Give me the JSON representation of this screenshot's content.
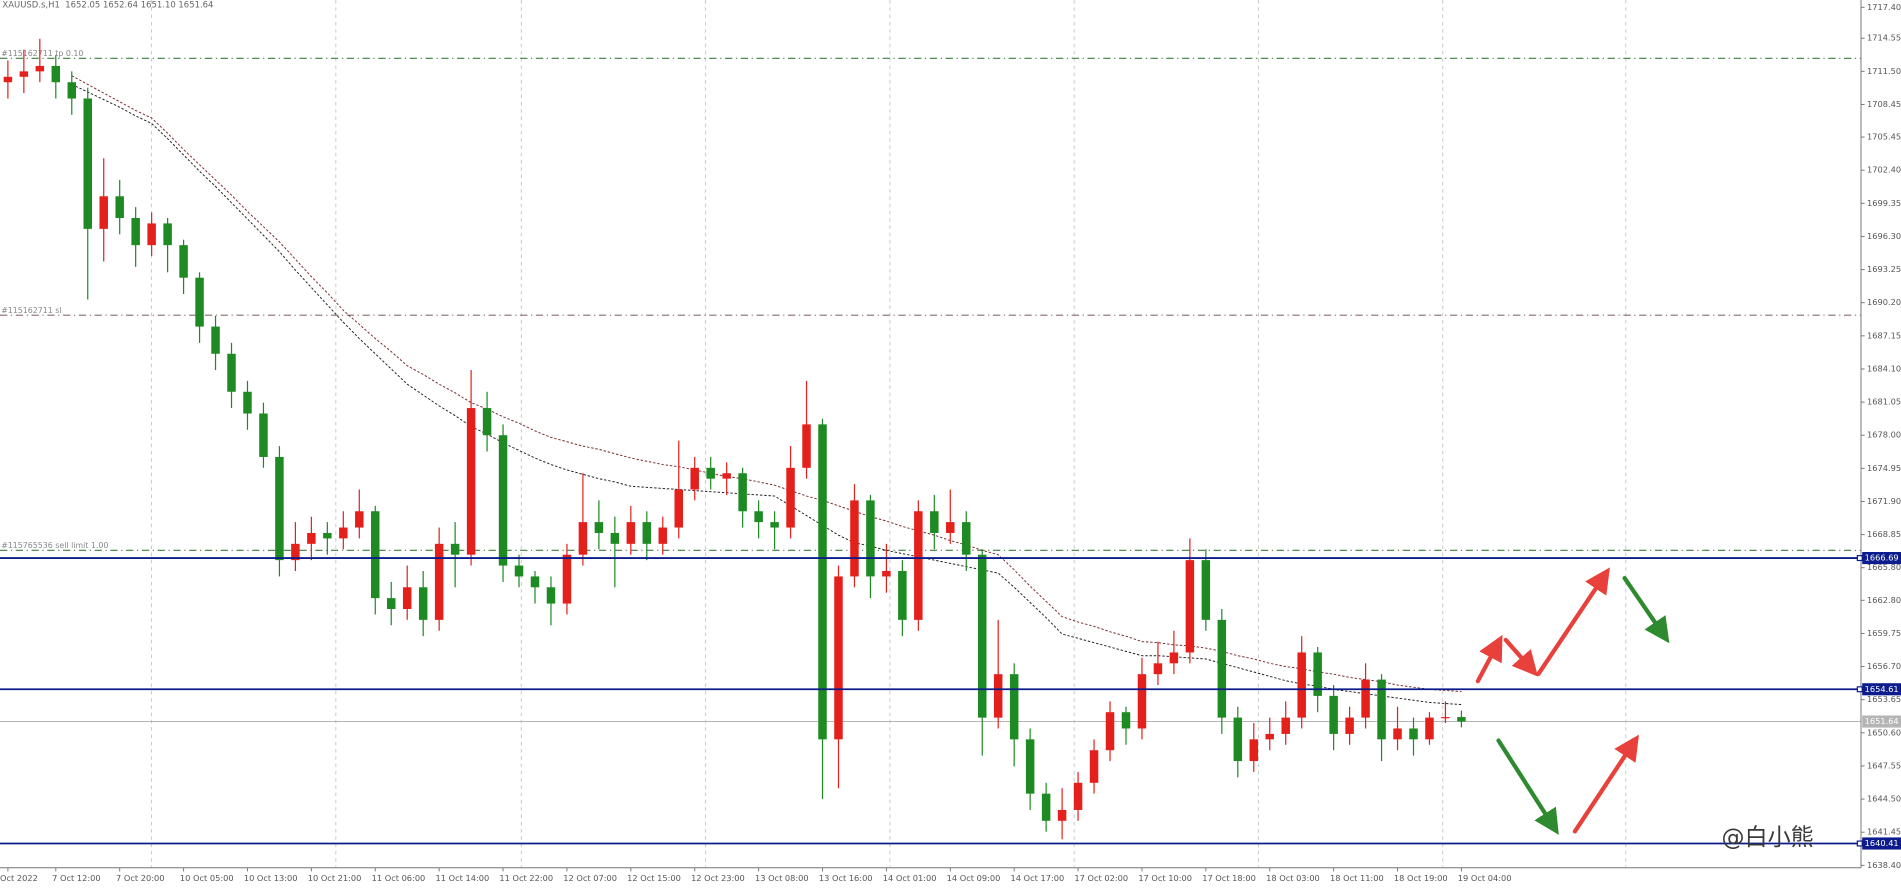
{
  "chart_data": {
    "type": "candlestick",
    "title": "XAUUSD.s,H1  1652.05 1652.64 1651.10 1651.64",
    "watermark": "@白小熊",
    "up_color": "#e3201b",
    "down_color": "#1e8a23",
    "ylim": [
      1638.4,
      1717.4
    ],
    "yticks": [
      {
        "value": 1717.4,
        "label": "1717.40"
      },
      1714.55,
      {
        "value": 1711.5,
        "label": "1711.50"
      },
      1708.45,
      1705.45,
      {
        "value": 1702.4,
        "label": "1702.40"
      },
      1699.35,
      {
        "value": 1696.3,
        "label": "1696.30"
      },
      1693.25,
      {
        "value": 1690.2,
        "label": "1690.20"
      },
      1687.15,
      {
        "value": 1684.1,
        "label": "1684.10"
      },
      1681.05,
      {
        "value": 1678.0,
        "label": "1678.00"
      },
      1674.95,
      {
        "value": 1671.9,
        "label": "1671.90"
      },
      1668.85,
      {
        "value": 1665.8,
        "label": "1665.80"
      },
      {
        "value": 1662.8,
        "label": "1662.80"
      },
      1659.75,
      {
        "value": 1656.7,
        "label": "1656.70"
      },
      1653.65,
      {
        "value": 1650.6,
        "label": "1650.60"
      },
      1647.55,
      {
        "value": 1644.5,
        "label": "1644.50"
      },
      1641.45,
      {
        "value": 1638.4,
        "label": "1638.40"
      }
    ],
    "categories": [
      "Oct 2022",
      null,
      null,
      "7 Oct 12:00",
      null,
      null,
      null,
      "7 Oct 20:00",
      null,
      null,
      null,
      "10 Oct 05:00",
      null,
      null,
      null,
      "10 Oct 13:00",
      null,
      null,
      null,
      "10 Oct 21:00",
      null,
      null,
      null,
      "11 Oct 06:00",
      null,
      null,
      null,
      "11 Oct 14:00",
      null,
      null,
      null,
      "11 Oct 22:00",
      null,
      null,
      null,
      "12 Oct 07:00",
      null,
      null,
      null,
      "12 Oct 15:00",
      null,
      null,
      null,
      "12 Oct 23:00",
      null,
      null,
      null,
      "13 Oct 08:00",
      null,
      null,
      null,
      "13 Oct 16:00",
      null,
      null,
      null,
      "14 Oct 01:00",
      null,
      null,
      null,
      "14 Oct 09:00",
      null,
      null,
      null,
      "14 Oct 17:00",
      null,
      null,
      null,
      "17 Oct 02:00",
      null,
      null,
      null,
      "17 Oct 10:00",
      null,
      null,
      null,
      "17 Oct 18:00",
      null,
      null,
      null,
      "18 Oct 03:00",
      null,
      null,
      null,
      "18 Oct 11:00",
      null,
      null,
      null,
      "18 Oct 19:00",
      null,
      null,
      null,
      "19 Oct 04:00"
    ],
    "open": [
      1710.5,
      1711.0,
      1711.5,
      1712.0,
      1710.5,
      1709.0,
      1697.0,
      1700.0,
      1698.0,
      1695.5,
      1697.5,
      1695.5,
      1692.5,
      1688.0,
      1685.5,
      1682.0,
      1680.0,
      1676.0,
      1666.5,
      1668.0,
      1669.0,
      1668.5,
      1669.5,
      1671.0,
      1663.0,
      1662.0,
      1664.0,
      1661.0,
      1668.0,
      1667.0,
      1680.5,
      1678.0,
      1666.0,
      1665.0,
      1664.0,
      1662.5,
      1667.0,
      1670.0,
      1669.0,
      1668.0,
      1670.0,
      1668.0,
      1669.5,
      1673.0,
      1675.0,
      1674.0,
      1674.5,
      1671.0,
      1670.0,
      1669.5,
      1675.0,
      1679.0,
      1650.0,
      1665.0,
      1672.0,
      1665.0,
      1665.5,
      1661.0,
      1671.0,
      1669.0,
      1670.0,
      1667.0,
      1652.0,
      1656.0,
      1650.0,
      1645.0,
      1642.5,
      1643.5,
      1646.0,
      1649.0,
      1652.5,
      1651.0,
      1656.0,
      1657.0,
      1658.0,
      1666.5,
      1661.0,
      1652.0,
      1648.0,
      1650.0,
      1650.5,
      1652.0,
      1658.0,
      1654.0,
      1650.5,
      1652.0,
      1655.5,
      1650.0,
      1651.0,
      1650.0,
      1652.0,
      1652.05
    ],
    "high": [
      1712.5,
      1713.5,
      1714.5,
      1713.0,
      1711.5,
      1710.0,
      1703.5,
      1701.5,
      1699.0,
      1698.5,
      1698.0,
      1696.0,
      1693.0,
      1689.0,
      1686.5,
      1683.0,
      1681.0,
      1677.0,
      1670.0,
      1670.5,
      1670.0,
      1671.0,
      1673.0,
      1671.5,
      1664.5,
      1666.0,
      1665.5,
      1669.5,
      1670.0,
      1684.0,
      1682.0,
      1679.0,
      1667.0,
      1665.5,
      1665.0,
      1668.0,
      1674.5,
      1672.0,
      1670.5,
      1671.5,
      1671.0,
      1670.5,
      1677.5,
      1676.0,
      1676.0,
      1675.5,
      1675.0,
      1672.0,
      1671.0,
      1677.0,
      1683.0,
      1679.5,
      1666.0,
      1673.5,
      1672.5,
      1668.0,
      1666.5,
      1672.0,
      1672.5,
      1673.0,
      1671.0,
      1667.5,
      1661.0,
      1657.0,
      1651.0,
      1646.0,
      1645.5,
      1647.0,
      1650.0,
      1653.5,
      1653.0,
      1657.5,
      1659.0,
      1660.0,
      1668.5,
      1667.5,
      1662.0,
      1653.0,
      1651.5,
      1652.0,
      1653.5,
      1659.5,
      1658.5,
      1655.0,
      1653.0,
      1657.0,
      1656.0,
      1653.0,
      1652.0,
      1652.5,
      1653.5,
      1652.64
    ],
    "low": [
      1709.0,
      1709.5,
      1710.5,
      1709.0,
      1707.5,
      1690.5,
      1694.0,
      1696.5,
      1693.5,
      1694.5,
      1693.0,
      1691.0,
      1686.5,
      1684.0,
      1680.5,
      1678.5,
      1675.0,
      1665.0,
      1665.5,
      1666.5,
      1667.0,
      1667.5,
      1668.5,
      1661.5,
      1660.5,
      1661.0,
      1659.5,
      1660.0,
      1664.0,
      1666.0,
      1676.5,
      1664.5,
      1664.0,
      1662.5,
      1660.5,
      1661.5,
      1666.0,
      1667.5,
      1664.0,
      1667.0,
      1666.5,
      1667.0,
      1668.5,
      1672.0,
      1673.0,
      1672.5,
      1669.5,
      1668.5,
      1667.5,
      1668.5,
      1674.0,
      1644.5,
      1645.5,
      1664.0,
      1663.0,
      1663.5,
      1659.5,
      1660.0,
      1667.5,
      1668.0,
      1665.5,
      1648.5,
      1651.0,
      1647.5,
      1643.5,
      1641.5,
      1640.8,
      1642.5,
      1645.0,
      1648.0,
      1649.5,
      1650.0,
      1655.0,
      1656.0,
      1657.0,
      1660.0,
      1650.5,
      1646.5,
      1647.0,
      1649.0,
      1649.5,
      1651.0,
      1652.5,
      1649.0,
      1649.5,
      1651.0,
      1648.0,
      1649.0,
      1648.5,
      1649.5,
      1651.5,
      1651.1
    ],
    "close": [
      1711.0,
      1711.5,
      1712.0,
      1710.5,
      1709.0,
      1697.0,
      1700.0,
      1698.0,
      1695.5,
      1697.5,
      1695.5,
      1692.5,
      1688.0,
      1685.5,
      1682.0,
      1680.0,
      1676.0,
      1666.5,
      1668.0,
      1669.0,
      1668.5,
      1669.5,
      1671.0,
      1663.0,
      1662.0,
      1664.0,
      1661.0,
      1668.0,
      1667.0,
      1680.5,
      1678.0,
      1666.0,
      1665.0,
      1664.0,
      1662.5,
      1667.0,
      1670.0,
      1669.0,
      1668.0,
      1670.0,
      1668.0,
      1669.5,
      1673.0,
      1675.0,
      1674.0,
      1674.5,
      1671.0,
      1670.0,
      1669.5,
      1675.0,
      1679.0,
      1650.0,
      1665.0,
      1672.0,
      1665.0,
      1665.5,
      1661.0,
      1671.0,
      1669.0,
      1670.0,
      1667.0,
      1652.0,
      1656.0,
      1650.0,
      1645.0,
      1642.5,
      1643.5,
      1646.0,
      1649.0,
      1652.5,
      1651.0,
      1656.0,
      1657.0,
      1658.0,
      1666.5,
      1661.0,
      1652.0,
      1648.0,
      1650.0,
      1650.5,
      1652.0,
      1658.0,
      1654.0,
      1650.5,
      1652.0,
      1655.5,
      1650.0,
      1651.0,
      1650.0,
      1652.0,
      1652.05,
      1651.64
    ],
    "overlays": [
      {
        "color": "#7a2a2a",
        "values": [
          null,
          null,
          null,
          null,
          1711.1,
          1710.3,
          1709.5,
          1708.7,
          1707.9,
          1707.2,
          1705.8,
          1704.3,
          1702.9,
          1701.5,
          1700.1,
          1698.6,
          1697.2,
          1695.8,
          1694.2,
          1692.6,
          1691.1,
          1689.5,
          1688.2,
          1686.9,
          1685.7,
          1684.4,
          1683.6,
          1682.7,
          1681.9,
          1681.0,
          1680.4,
          1679.7,
          1679.1,
          1678.4,
          1677.8,
          1677.4,
          1677.0,
          1676.7,
          1676.3,
          1675.9,
          1675.6,
          1675.3,
          1675.1,
          1674.8,
          1674.5,
          1674.2,
          1674.0,
          1673.7,
          1673.4,
          1672.9,
          1672.4,
          1672.0,
          1671.5,
          1671.0,
          1670.5,
          1670.1,
          1669.6,
          1669.2,
          1668.8,
          1668.3,
          1667.9,
          1667.4,
          1667.0,
          1665.6,
          1664.1,
          1662.7,
          1661.3,
          1660.8,
          1660.4,
          1659.9,
          1659.5,
          1659.0,
          1658.9,
          1658.7,
          1658.6,
          1658.4,
          1658.1,
          1657.7,
          1657.4,
          1657.0,
          1656.7,
          1656.5,
          1656.2,
          1656.0,
          1655.7,
          1655.5,
          1655.3,
          1655.0,
          1654.8,
          1654.6,
          1654.5,
          1654.4
        ]
      },
      {
        "color": "#222222",
        "values": [
          null,
          null,
          null,
          null,
          1710.3,
          1709.6,
          1708.9,
          1708.2,
          1707.4,
          1706.7,
          1705.3,
          1703.8,
          1702.3,
          1700.9,
          1699.4,
          1697.9,
          1696.4,
          1694.9,
          1693.2,
          1691.6,
          1690.0,
          1688.4,
          1686.9,
          1685.5,
          1684.1,
          1682.7,
          1681.7,
          1680.7,
          1679.8,
          1678.8,
          1678.1,
          1677.3,
          1676.6,
          1675.9,
          1675.3,
          1674.8,
          1674.4,
          1674.0,
          1673.7,
          1673.3,
          1673.2,
          1673.1,
          1673.0,
          1672.9,
          1672.8,
          1672.7,
          1672.6,
          1672.5,
          1672.4,
          1671.5,
          1670.6,
          1669.7,
          1668.8,
          1668.1,
          1667.8,
          1667.4,
          1667.1,
          1666.8,
          1666.5,
          1666.2,
          1665.9,
          1665.6,
          1665.3,
          1664.0,
          1662.6,
          1661.2,
          1659.7,
          1659.3,
          1658.9,
          1658.5,
          1658.1,
          1657.7,
          1657.7,
          1657.6,
          1657.5,
          1657.4,
          1657.0,
          1656.6,
          1656.2,
          1655.8,
          1655.4,
          1655.1,
          1654.9,
          1654.6,
          1654.4,
          1654.2,
          1654.0,
          1653.8,
          1653.6,
          1653.4,
          1653.3,
          1653.2
        ]
      }
    ],
    "levels": [
      {
        "label": "#115162711 tp 0.10",
        "value": 1712.7,
        "color": "#3f7f3f"
      },
      {
        "label": "#115162711 sl",
        "value": 1689.05,
        "color": "#8a6c6c"
      },
      {
        "label": "#115765536 sell limit 1.00",
        "value": 1667.4,
        "color": "#3f7f3f"
      }
    ],
    "hlines": [
      1666.69,
      1654.61,
      1640.41
    ],
    "hline_color": "#0c1c8c",
    "bid": 1651.64
  }
}
